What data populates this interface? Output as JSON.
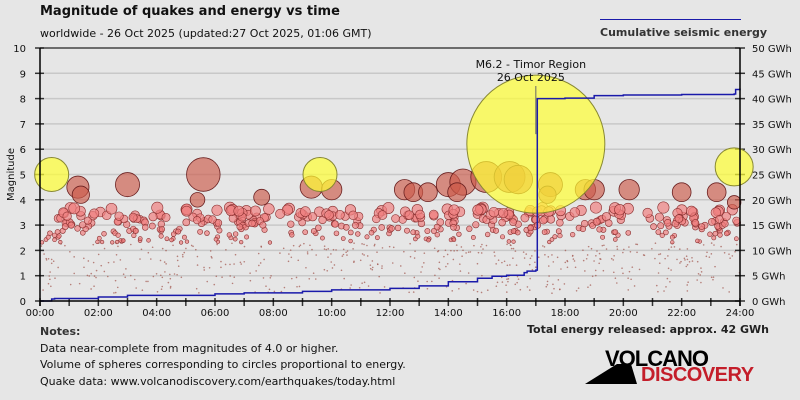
{
  "header": {
    "title": "Magnitude of quakes and energy vs time",
    "subtitle": "worldwide - 26 Oct 2025 (updated:27 Oct 2025, 01:06 GMT)"
  },
  "legend": {
    "label": "Cumulative seismic energy",
    "line_color": "#1a1aaa"
  },
  "footer": {
    "total_energy": "Total energy released: approx. 42 GWh",
    "notes_header": "Notes:",
    "notes": [
      "Data near-complete from magnitudes of 4.0 or higher.",
      "Volume of spheres corresponding to circles proportional to energy.",
      "Quake data: www.volcanodiscovery.com/earthquakes/today.html"
    ]
  },
  "logo": {
    "line1": "VOLCANO",
    "line2": "DISCOVERY",
    "accent": "#c41e2a"
  },
  "chart_data": {
    "type": "scatter",
    "title": "Magnitude of quakes and energy vs time",
    "xlabel": "",
    "ylabel": "Magnitude",
    "y2label": "Cumulative seismic energy (GWh)",
    "xlim": [
      0,
      24
    ],
    "ylim": [
      0,
      10
    ],
    "y2lim": [
      0,
      50
    ],
    "grid": true,
    "legend_position": "top-right",
    "x_ticks": [
      "00:00",
      "02:00",
      "04:00",
      "06:00",
      "08:00",
      "10:00",
      "12:00",
      "14:00",
      "16:00",
      "18:00",
      "20:00",
      "22:00",
      "24:00"
    ],
    "y_ticks": [
      "0",
      "1",
      "2",
      "3",
      "4",
      "5",
      "6",
      "7",
      "8",
      "9",
      "10"
    ],
    "y2_ticks": [
      "0 GWh",
      "5 GWh",
      "10 GWh",
      "15 GWh",
      "20 GWh",
      "25 GWh",
      "30 GWh",
      "35 GWh",
      "40 GWh",
      "45 GWh",
      "50 GWh"
    ],
    "annotation": {
      "label": "M6.2 - Timor Region",
      "date": "26 Oct 2025",
      "time_h": 17.0,
      "mag": 6.2
    },
    "highlight_quakes": [
      {
        "time_h": 0.4,
        "mag": 5.0
      },
      {
        "time_h": 9.6,
        "mag": 5.0
      },
      {
        "time_h": 17.0,
        "mag": 6.2
      },
      {
        "time_h": 23.8,
        "mag": 5.3
      }
    ],
    "notable_quakes": [
      {
        "time_h": 1.3,
        "mag": 4.5
      },
      {
        "time_h": 1.4,
        "mag": 4.2
      },
      {
        "time_h": 3.0,
        "mag": 4.6
      },
      {
        "time_h": 5.6,
        "mag": 5.0
      },
      {
        "time_h": 5.4,
        "mag": 4.0
      },
      {
        "time_h": 7.6,
        "mag": 4.1
      },
      {
        "time_h": 9.3,
        "mag": 4.5
      },
      {
        "time_h": 10.0,
        "mag": 4.4
      },
      {
        "time_h": 12.5,
        "mag": 4.4
      },
      {
        "time_h": 12.8,
        "mag": 4.3
      },
      {
        "time_h": 13.3,
        "mag": 4.3
      },
      {
        "time_h": 14.0,
        "mag": 4.6
      },
      {
        "time_h": 14.5,
        "mag": 4.7
      },
      {
        "time_h": 14.3,
        "mag": 4.3
      },
      {
        "time_h": 15.3,
        "mag": 4.9
      },
      {
        "time_h": 16.1,
        "mag": 4.9
      },
      {
        "time_h": 16.4,
        "mag": 4.8
      },
      {
        "time_h": 17.5,
        "mag": 4.6
      },
      {
        "time_h": 17.4,
        "mag": 4.2
      },
      {
        "time_h": 18.7,
        "mag": 4.4
      },
      {
        "time_h": 19.0,
        "mag": 4.4
      },
      {
        "time_h": 20.2,
        "mag": 4.4
      },
      {
        "time_h": 22.0,
        "mag": 4.3
      },
      {
        "time_h": 23.2,
        "mag": 4.3
      },
      {
        "time_h": 23.8,
        "mag": 3.9
      }
    ],
    "series": [
      {
        "name": "Cumulative seismic energy",
        "unit": "GWh",
        "x": [
          0,
          0.4,
          0.5,
          2.0,
          3.0,
          6.0,
          7.0,
          9.0,
          10.0,
          12.0,
          13.0,
          14.0,
          15.0,
          15.5,
          16.0,
          16.6,
          16.7,
          17.0,
          17.05,
          18.0,
          19.0,
          20.0,
          22.0,
          23.8,
          23.85,
          24.0
        ],
        "y": [
          0,
          0.4,
          0.5,
          0.8,
          1.1,
          1.4,
          1.6,
          1.9,
          2.2,
          2.5,
          3.0,
          3.8,
          4.5,
          4.9,
          5.1,
          5.6,
          5.9,
          6.1,
          40.0,
          40.1,
          40.6,
          40.7,
          40.8,
          40.9,
          41.8,
          42.0
        ]
      }
    ]
  }
}
